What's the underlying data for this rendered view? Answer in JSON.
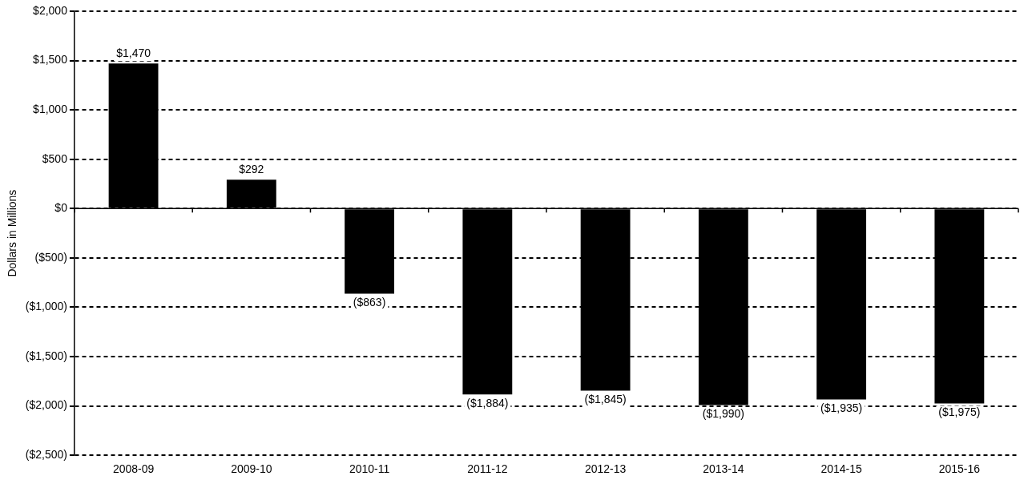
{
  "chart_data": {
    "type": "bar",
    "ylabel": "Dollars in Millions",
    "categories": [
      "2008-09",
      "2009-10",
      "2010-11",
      "2011-12",
      "2012-13",
      "2013-14",
      "2014-15",
      "2015-16"
    ],
    "values": [
      1470,
      292,
      -863,
      -1884,
      -1845,
      -1990,
      -1935,
      -1975
    ],
    "value_labels": [
      "$1,470",
      "$292",
      "($863)",
      "($1,884)",
      "($1,845)",
      "($1,990)",
      "($1,935)",
      "($1,975)"
    ],
    "color": "#000000",
    "ylim": [
      -2500,
      2000
    ],
    "yticks": [
      {
        "value": -2500,
        "label": "($2,500)"
      },
      {
        "value": -2000,
        "label": "($2,000)"
      },
      {
        "value": -1500,
        "label": "($1,500)"
      },
      {
        "value": -1000,
        "label": "($1,000)"
      },
      {
        "value": -500,
        "label": "($500)"
      },
      {
        "value": 0,
        "label": "$0"
      },
      {
        "value": 500,
        "label": "$500"
      },
      {
        "value": 1000,
        "label": "$1,000"
      },
      {
        "value": 1500,
        "label": "$1,500"
      },
      {
        "value": 2000,
        "label": "$2,000"
      }
    ],
    "grid": "y",
    "legend": false
  }
}
